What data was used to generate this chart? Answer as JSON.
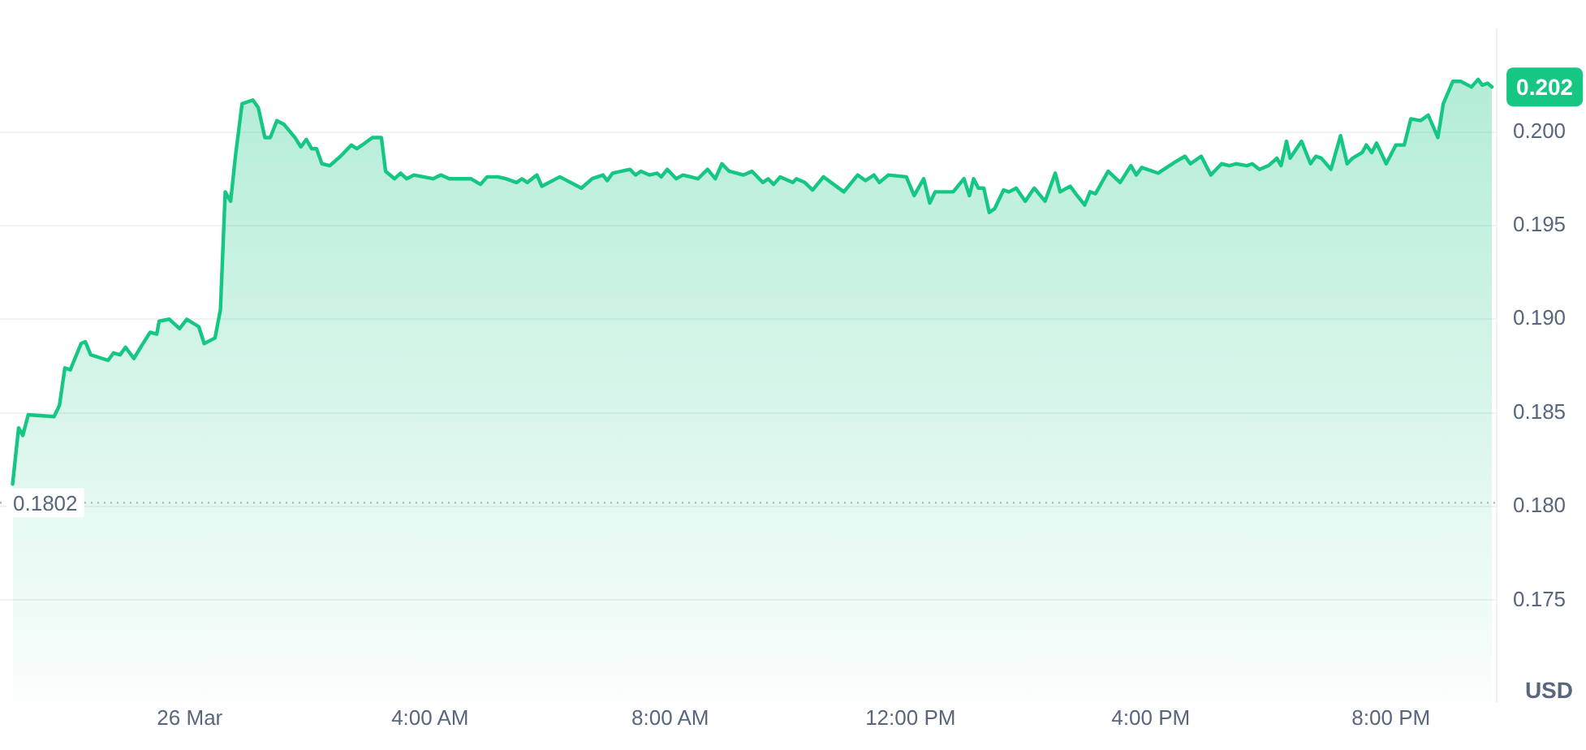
{
  "chart_data": {
    "type": "area",
    "ylabel": "USD",
    "color": "#16c784",
    "x": [
      -2.95,
      -2.85,
      -2.78,
      -2.69,
      -2.26,
      -2.17,
      -2.08,
      -1.99,
      -1.81,
      -1.74,
      -1.65,
      -1.36,
      -1.27,
      -1.16,
      -1.07,
      -0.93,
      -0.8,
      -0.66,
      -0.55,
      -0.51,
      -0.34,
      -0.17,
      -0.05,
      0.15,
      0.24,
      0.42,
      0.51,
      0.59,
      0.68,
      0.76,
      0.87,
      1.05,
      1.14,
      1.25,
      1.34,
      1.45,
      1.57,
      1.75,
      1.85,
      1.94,
      2.03,
      2.11,
      2.2,
      2.33,
      2.51,
      2.69,
      2.78,
      2.87,
      3.04,
      3.19,
      3.26,
      3.41,
      3.51,
      3.61,
      3.73,
      4.05,
      4.18,
      4.32,
      4.68,
      4.84,
      4.95,
      5.13,
      5.26,
      5.44,
      5.53,
      5.62,
      5.78,
      5.86,
      6.16,
      6.52,
      6.7,
      6.88,
      6.95,
      7.04,
      7.33,
      7.42,
      7.51,
      7.65,
      7.78,
      7.85,
      7.95,
      8.1,
      8.21,
      8.46,
      8.62,
      8.75,
      8.86,
      8.98,
      9.22,
      9.36,
      9.54,
      9.63,
      9.72,
      9.83,
      10.04,
      10.1,
      10.24,
      10.37,
      10.55,
      10.89,
      11.12,
      11.25,
      11.39,
      11.48,
      11.63,
      11.93,
      12.06,
      12.22,
      12.32,
      12.41,
      12.71,
      12.89,
      12.98,
      13.05,
      13.13,
      13.22,
      13.31,
      13.4,
      13.55,
      13.64,
      13.76,
      13.91,
      14.06,
      14.24,
      14.41,
      14.49,
      14.66,
      14.75,
      14.9,
      14.99,
      15.08,
      15.29,
      15.49,
      15.67,
      15.76,
      15.85,
      16.12,
      16.41,
      16.57,
      16.66,
      16.84,
      17,
      17.18,
      17.31,
      17.42,
      17.6,
      17.69,
      17.81,
      17.96,
      18.1,
      18.17,
      18.26,
      18.32,
      18.51,
      18.66,
      18.75,
      18.84,
      19,
      19.16,
      19.27,
      19.36,
      19.52,
      19.59,
      19.68,
      19.76,
      19.92,
      20.08,
      20.22,
      20.33,
      20.49,
      20.62,
      20.78,
      20.87,
      21.03,
      21.16,
      21.34,
      21.45,
      21.52,
      21.61,
      21.68
    ],
    "values": [
      0.1812,
      0.1842,
      0.1838,
      0.1849,
      0.1848,
      0.1854,
      0.1874,
      0.1873,
      0.1887,
      0.1888,
      0.1881,
      0.1878,
      0.1882,
      0.1881,
      0.1885,
      0.1879,
      0.1886,
      0.1893,
      0.1892,
      0.1899,
      0.19,
      0.1895,
      0.19,
      0.1896,
      0.1887,
      0.189,
      0.1905,
      0.1968,
      0.1963,
      0.1987,
      0.2015,
      0.2017,
      0.2013,
      0.1997,
      0.1997,
      0.2006,
      0.2004,
      0.1997,
      0.1992,
      0.1996,
      0.1991,
      0.1991,
      0.1983,
      0.1982,
      0.1987,
      0.1993,
      0.1991,
      0.1993,
      0.1997,
      0.1997,
      0.1979,
      0.1975,
      0.1978,
      0.1975,
      0.1977,
      0.1975,
      0.1977,
      0.1975,
      0.1975,
      0.1972,
      0.1976,
      0.1976,
      0.1975,
      0.1973,
      0.1975,
      0.1973,
      0.1977,
      0.1971,
      0.1976,
      0.197,
      0.1975,
      0.1977,
      0.1974,
      0.1978,
      0.198,
      0.1977,
      0.1979,
      0.1977,
      0.1978,
      0.1976,
      0.198,
      0.1975,
      0.1977,
      0.1975,
      0.198,
      0.1975,
      0.1983,
      0.1979,
      0.1977,
      0.1979,
      0.1973,
      0.1975,
      0.1972,
      0.1976,
      0.1973,
      0.1975,
      0.1973,
      0.1969,
      0.1976,
      0.1968,
      0.1977,
      0.1974,
      0.1977,
      0.1973,
      0.1977,
      0.1976,
      0.1966,
      0.1975,
      0.1962,
      0.1968,
      0.1968,
      0.1975,
      0.1966,
      0.1975,
      0.197,
      0.197,
      0.1957,
      0.1959,
      0.1969,
      0.1968,
      0.197,
      0.1963,
      0.197,
      0.1963,
      0.1978,
      0.1968,
      0.1971,
      0.1967,
      0.1961,
      0.1968,
      0.1967,
      0.1979,
      0.1973,
      0.1982,
      0.1977,
      0.1981,
      0.1978,
      0.1984,
      0.1987,
      0.1983,
      0.1987,
      0.1977,
      0.1983,
      0.1982,
      0.1983,
      0.1982,
      0.1983,
      0.198,
      0.1982,
      0.1986,
      0.1982,
      0.1995,
      0.1986,
      0.1995,
      0.1983,
      0.1987,
      0.1986,
      0.198,
      0.1998,
      0.1983,
      0.1986,
      0.1989,
      0.1993,
      0.1989,
      0.1994,
      0.1983,
      0.1993,
      0.1993,
      0.2007,
      0.2006,
      0.2009,
      0.1997,
      0.2015,
      0.2027,
      0.2027,
      0.2024,
      0.2028,
      0.2025,
      0.2026,
      0.2024
    ],
    "xlim": [
      -3.16,
      21.76
    ],
    "ylim": [
      0.1696,
      0.2055
    ],
    "xticks": [
      {
        "value": 0,
        "label": "26 Mar"
      },
      {
        "value": 4,
        "label": "4:00 AM"
      },
      {
        "value": 8,
        "label": "8:00 AM"
      },
      {
        "value": 12,
        "label": "12:00 PM"
      },
      {
        "value": 16,
        "label": "4:00 PM"
      },
      {
        "value": 20,
        "label": "8:00 PM"
      }
    ],
    "yticks": [
      0.175,
      {
        "value": 0.18,
        "label": "0.180"
      },
      0.185,
      {
        "value": 0.19,
        "label": "0.190"
      },
      {
        "value": 0.195,
        "label": "0.195"
      },
      {
        "value": 0.2,
        "label": "0.200"
      }
    ],
    "grid": "y",
    "marker": "none",
    "ref_lines": [
      {
        "axis": "y",
        "value": 0.1802,
        "label": "0.1802",
        "line_style": "dotted",
        "color": "#a6b0c3"
      }
    ],
    "annotations": [
      {
        "text": "0.202",
        "x": 21.68,
        "y": 0.2024
      }
    ]
  }
}
